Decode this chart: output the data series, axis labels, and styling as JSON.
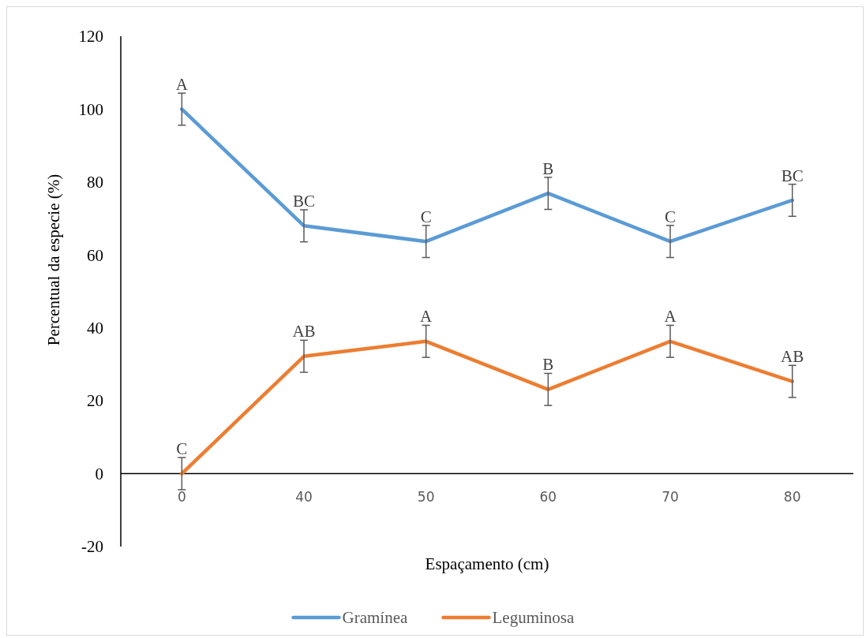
{
  "chart_data": {
    "type": "line",
    "xlabel": "Espaçamento (cm)",
    "ylabel": "Percentual da especie  (%)",
    "categories": [
      "0",
      "40",
      "50",
      "60",
      "70",
      "80"
    ],
    "ylim": [
      -20,
      120
    ],
    "yticks": [
      -20,
      0,
      20,
      40,
      60,
      80,
      100,
      120
    ],
    "grid": false,
    "legend": "bottom",
    "marker": "none",
    "line_style": "solid",
    "series": [
      {
        "name": "Gramínea",
        "color": "#5b9bd5",
        "values": [
          100,
          68,
          63.7,
          76.9,
          63.7,
          75
        ],
        "errors": [
          4.4,
          4.4,
          4.4,
          4.4,
          4.4,
          4.4
        ]
      },
      {
        "name": "Leguminosa",
        "color": "#ed7d31",
        "values": [
          0,
          32.2,
          36.3,
          23.1,
          36.3,
          25.3
        ],
        "errors": [
          4.4,
          4.4,
          4.4,
          4.4,
          4.4,
          4.4
        ]
      }
    ],
    "annotations": [
      {
        "text": "A",
        "x": "0",
        "y": 100
      },
      {
        "text": "BC",
        "x": "40",
        "y": 68
      },
      {
        "text": "C",
        "x": "50",
        "y": 63.7
      },
      {
        "text": "B",
        "x": "60",
        "y": 76.9
      },
      {
        "text": "C",
        "x": "70",
        "y": 63.7
      },
      {
        "text": "BC",
        "x": "80",
        "y": 75
      },
      {
        "text": "C",
        "x": "0",
        "y": 0
      },
      {
        "text": "AB",
        "x": "40",
        "y": 32.2
      },
      {
        "text": "A",
        "x": "50",
        "y": 36.3
      },
      {
        "text": "B",
        "x": "60",
        "y": 23.1
      },
      {
        "text": "A",
        "x": "70",
        "y": 36.3
      },
      {
        "text": "AB",
        "x": "80",
        "y": 25.3
      }
    ]
  }
}
